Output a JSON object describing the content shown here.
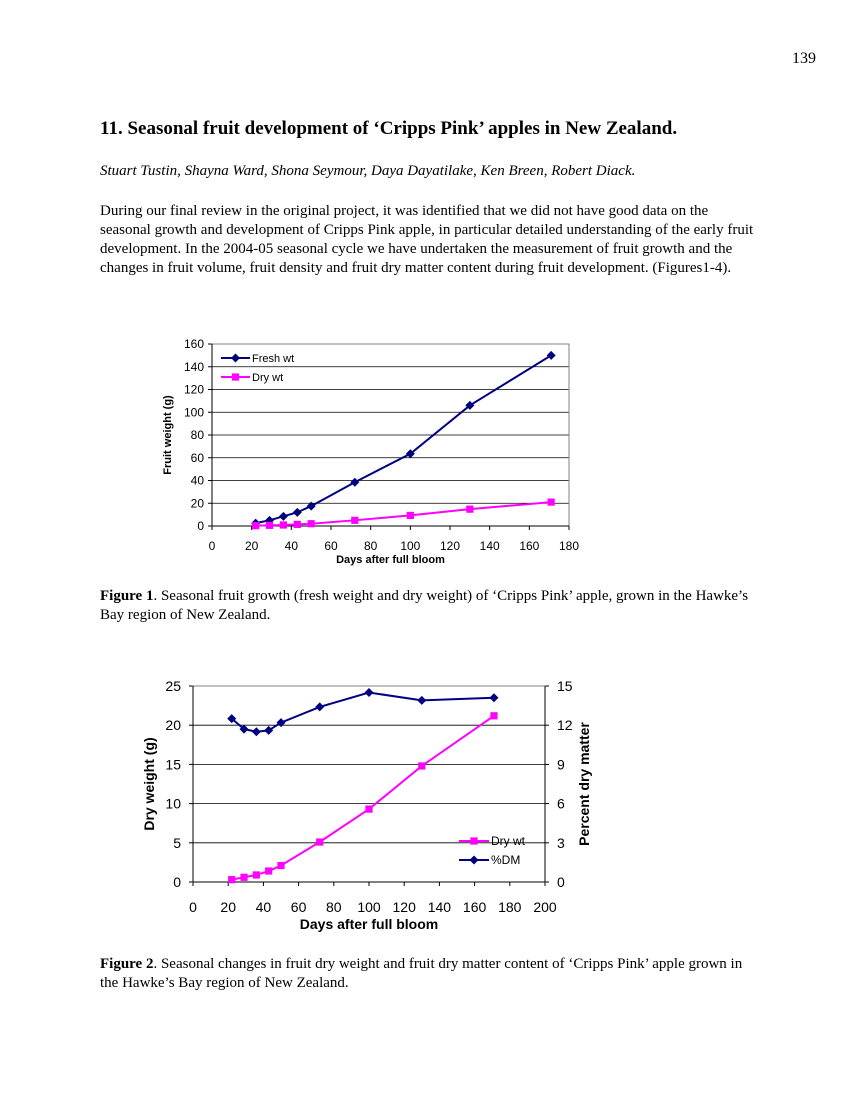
{
  "page": {
    "number": "139",
    "title": "11. Seasonal fruit development of ‘Cripps Pink’ apples in New Zealand.",
    "authors": "Stuart Tustin, Shayna Ward, Shona Seymour, Daya Dayatilake, Ken Breen, Robert Diack.",
    "paragraph": "During our final review in the original project, it was identified that we did not have good data on the seasonal growth and development of Cripps Pink apple, in particular detailed understanding of the early fruit development. In the 2004-05 seasonal cycle we have undertaken the measurement of fruit growth and the changes in fruit volume, fruit density and fruit dry matter content during fruit development. (Figures1-4).",
    "fig1_caption_label": "Figure 1",
    "fig1_caption_text": ". Seasonal fruit growth (fresh weight and dry weight) of ‘Cripps Pink’ apple, grown in the Hawke’s Bay region of New Zealand.",
    "fig2_caption_label": "Figure 2",
    "fig2_caption_text": ". Seasonal changes in fruit dry weight and fruit dry matter content of ‘Cripps Pink’ apple grown in the Hawke’s Bay region of New Zealand."
  },
  "colors": {
    "fresh": "#000080",
    "dry": "#ff00ff",
    "dm": "#000080"
  },
  "chart_data": [
    {
      "type": "line",
      "xlabel": "Days after full bloom",
      "ylabel": "Fruit weight (g)",
      "xlim": [
        0,
        180
      ],
      "ylim": [
        0,
        160
      ],
      "xticks": [
        0,
        20,
        40,
        60,
        80,
        100,
        120,
        140,
        160,
        180
      ],
      "yticks": [
        0,
        20,
        40,
        60,
        80,
        100,
        120,
        140,
        160
      ],
      "grid": "horizontal",
      "legend_position": "top-left",
      "series": [
        {
          "name": "Fresh wt",
          "marker": "diamond",
          "color": "#000080",
          "x": [
            22,
            29,
            36,
            43,
            50,
            72,
            100,
            130,
            171
          ],
          "y": [
            2.5,
            5,
            8.5,
            12,
            17.5,
            38.5,
            63.5,
            106,
            150
          ]
        },
        {
          "name": "Dry wt",
          "marker": "square",
          "color": "#ff00ff",
          "x": [
            22,
            29,
            36,
            43,
            50,
            72,
            100,
            130,
            171
          ],
          "y": [
            0.3,
            0.6,
            0.9,
            1.4,
            2,
            5,
            9.3,
            14.8,
            21
          ]
        }
      ]
    },
    {
      "type": "line",
      "xlabel": "Days after full bloom",
      "ylabel": "Dry weight (g)",
      "y2label": "Percent dry matter",
      "xlim": [
        0,
        200
      ],
      "ylim": [
        0,
        25
      ],
      "y2lim": [
        0,
        15
      ],
      "xticks": [
        0,
        20,
        40,
        60,
        80,
        100,
        120,
        140,
        160,
        180,
        200
      ],
      "yticks": [
        0,
        5,
        10,
        15,
        20,
        25
      ],
      "y2ticks": [
        0,
        3,
        6,
        9,
        12,
        15
      ],
      "grid": "horizontal",
      "legend_position": "bottom-right",
      "series": [
        {
          "name": "Dry wt",
          "axis": "left",
          "marker": "square",
          "color": "#ff00ff",
          "x": [
            22,
            29,
            36,
            43,
            50,
            72,
            100,
            130,
            171
          ],
          "y": [
            0.3,
            0.6,
            0.9,
            1.4,
            2.1,
            5.1,
            9.3,
            14.8,
            21.2
          ]
        },
        {
          "name": "%DM",
          "axis": "right",
          "marker": "diamond",
          "color": "#000080",
          "x": [
            22,
            29,
            36,
            43,
            50,
            72,
            100,
            130,
            171
          ],
          "y": [
            12.5,
            11.7,
            11.5,
            11.6,
            12.2,
            13.4,
            14.5,
            13.9,
            14.1
          ]
        }
      ]
    }
  ]
}
